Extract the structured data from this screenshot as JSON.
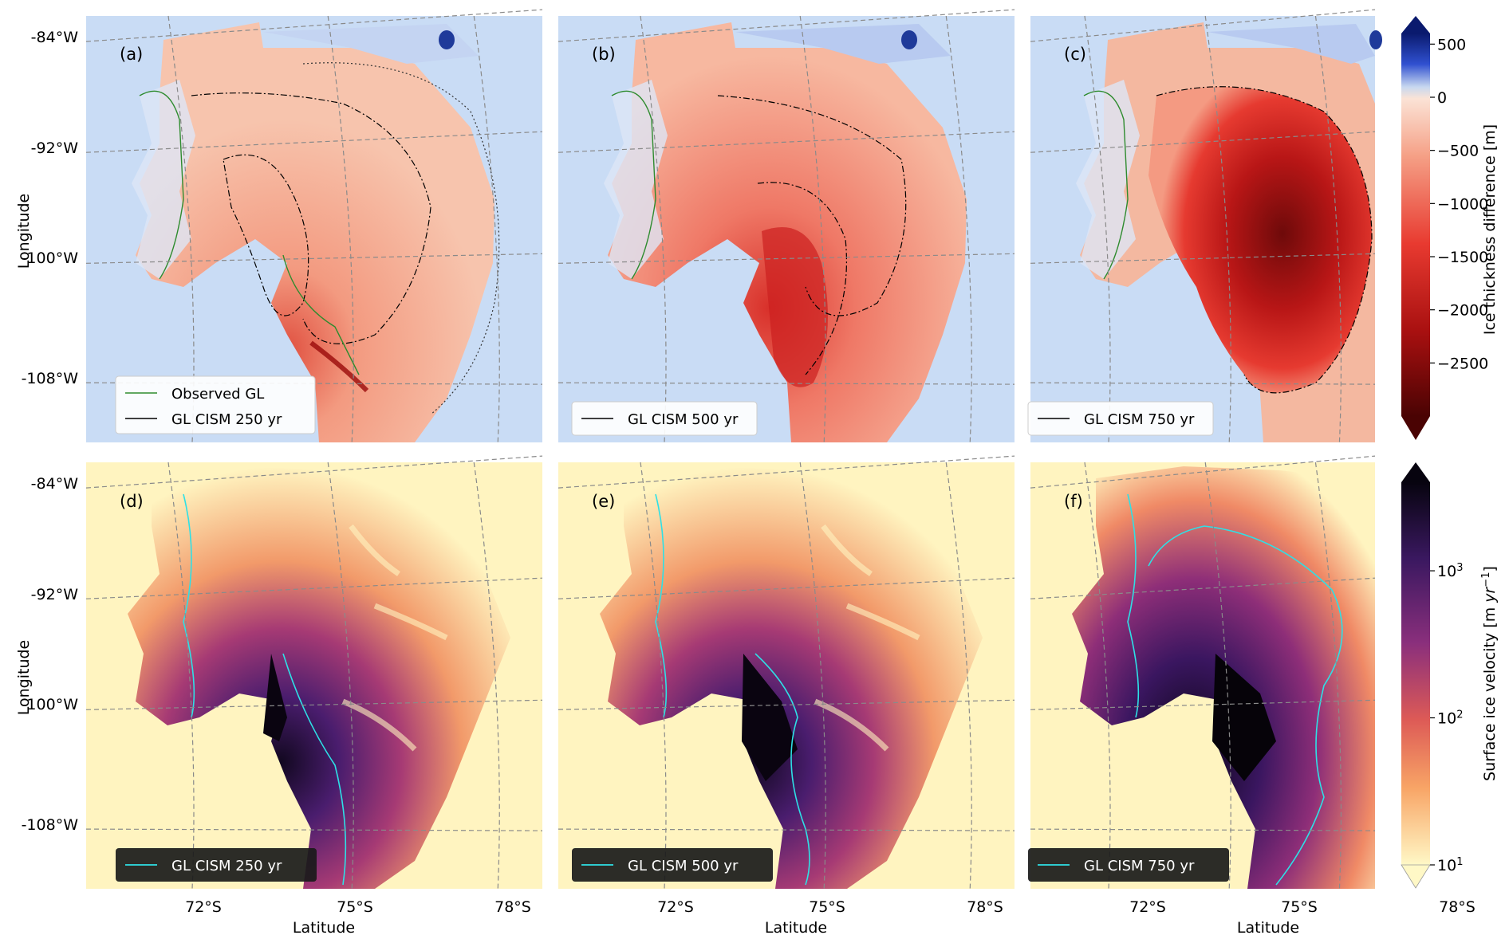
{
  "figure": {
    "ylabel": "Longitude",
    "xlabel": "Latitude",
    "lon_ticks": [
      "-84°W",
      "-92°W",
      "-100°W",
      "-108°W"
    ],
    "lat_ticks": [
      "72°S",
      "75°S",
      "78°S"
    ],
    "thickness_colorbar": {
      "label": "Ice thickness difference [m]",
      "ticks": [
        "500",
        "0",
        "−500",
        "−1000",
        "−1500",
        "−2000",
        "−2500"
      ],
      "range": [
        -3000,
        600
      ]
    },
    "velocity_colorbar": {
      "label_prefix": "Surface ice velocity [m ",
      "label_unit_base": "yr",
      "label_unit_exp": "−1",
      "label_suffix": "]",
      "ticks": [
        {
          "base": "10",
          "exp": "3"
        },
        {
          "base": "10",
          "exp": "2"
        },
        {
          "base": "10",
          "exp": "1"
        }
      ],
      "range": [
        10,
        4000
      ],
      "scale": "log"
    },
    "colors": {
      "ocean": "#c9dcf5",
      "gl_observed": "#2e8b2e",
      "gl_cism": "#000000",
      "gl_cism_velocity": "#2ee0e6",
      "thickness_light": "#f7c0a6",
      "thickness_mid": "#e8433a",
      "thickness_dark": "#6e0a0a",
      "velocity_slow": "#fff4c0",
      "velocity_fast": "#1a0a2e"
    }
  },
  "chart_data": [
    {
      "type": "heatmap",
      "panel": "(a)",
      "field": "ice thickness difference",
      "legend": [
        "Observed GL",
        "GL CISM 250 yr"
      ],
      "legend_position": "lower-left",
      "max_thinning_m": -1800
    },
    {
      "type": "heatmap",
      "panel": "(b)",
      "field": "ice thickness difference",
      "legend": [
        "GL CISM 500 yr"
      ],
      "legend_position": "lower-left",
      "max_thinning_m": -2000
    },
    {
      "type": "heatmap",
      "panel": "(c)",
      "field": "ice thickness difference",
      "legend": [
        "GL CISM 750 yr"
      ],
      "legend_position": "lower-left",
      "max_thinning_m": -2800
    },
    {
      "type": "heatmap",
      "panel": "(d)",
      "field": "surface ice velocity",
      "legend": [
        "GL CISM 250 yr"
      ],
      "legend_position": "lower-left",
      "max_velocity_m_yr": 3000
    },
    {
      "type": "heatmap",
      "panel": "(e)",
      "field": "surface ice velocity",
      "legend": [
        "GL CISM 500 yr"
      ],
      "legend_position": "lower-left",
      "max_velocity_m_yr": 3500
    },
    {
      "type": "heatmap",
      "panel": "(f)",
      "field": "surface ice velocity",
      "legend": [
        "GL CISM 750 yr"
      ],
      "legend_position": "lower-left",
      "max_velocity_m_yr": 4000
    }
  ]
}
